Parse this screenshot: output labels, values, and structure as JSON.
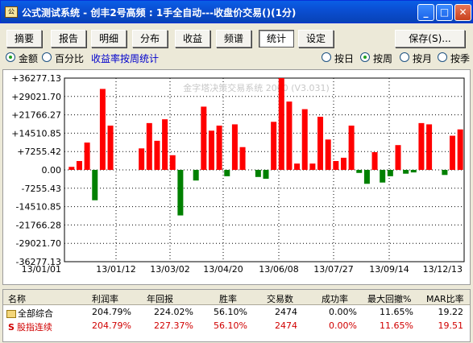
{
  "window": {
    "title": "公式测试系统 - 创丰2号高频 : 1手全自动---收盘价交易()(1分)",
    "app_icon": "公",
    "min_glyph": "_",
    "max_glyph": "□",
    "close_glyph": "✕"
  },
  "tabs": {
    "summary": "摘要",
    "report": "报告",
    "detail": "明细",
    "distribution": "分布",
    "profit": "收益",
    "frequency": "频谱",
    "stats": "统计",
    "settings": "设定",
    "save": "保存(S)..."
  },
  "options": {
    "amount": "金额",
    "percent": "百分比",
    "link": "收益率按周统计",
    "by_day": "按日",
    "by_week": "按周",
    "by_month": "按月",
    "by_quarter": "按季"
  },
  "chart_data": {
    "type": "bar",
    "watermark": "金字塔决策交易系统 2000 (V3.031)",
    "y_ticks": [
      "+36277.13",
      "+29021.70",
      "+21766.27",
      "+14510.85",
      "+7255.42",
      "0.00",
      "-7255.43",
      "-14510.85",
      "-21766.28",
      "-29021.70",
      "-36277.13"
    ],
    "ylim": [
      -36277.13,
      36277.13
    ],
    "x_ticks": [
      "13/01/01",
      "13/01/12",
      "13/03/02",
      "13/04/20",
      "13/06/08",
      "13/07/27",
      "13/09/14",
      "13/12/13"
    ],
    "values": [
      1200,
      3500,
      10800,
      -12000,
      32000,
      17500,
      0,
      0,
      0,
      8500,
      18500,
      11500,
      20000,
      5800,
      -18000,
      0,
      -4200,
      25000,
      15500,
      17500,
      -2500,
      18000,
      9000,
      0,
      -2800,
      -3500,
      19000,
      36277,
      27000,
      2500,
      24000,
      2500,
      21000,
      12000,
      3500,
      4800,
      17500,
      -1200,
      -5500,
      7000,
      -5000,
      -2500,
      9800,
      -1500,
      -1000,
      18500,
      18000,
      0,
      -2000,
      13500,
      16000
    ],
    "grid": true,
    "colors": {
      "positive": "#FF0000",
      "negative": "#008000"
    }
  },
  "table": {
    "headers": [
      "名称",
      "利润率",
      "年回报",
      "胜率",
      "交易数",
      "成功率",
      "最大回撤%",
      "MAR比率"
    ],
    "rows": [
      {
        "name": "全部综合",
        "icon": "folder-icon",
        "values": [
          "204.79%",
          "224.02%",
          "56.10%",
          "2474",
          "0.00%",
          "11.65%",
          "19.22"
        ]
      },
      {
        "name": "股指连续",
        "icon": "s-icon",
        "values": [
          "204.79%",
          "227.37%",
          "56.10%",
          "2474",
          "0.00%",
          "11.65%",
          "19.51"
        ]
      }
    ],
    "s_glyph": "S"
  }
}
